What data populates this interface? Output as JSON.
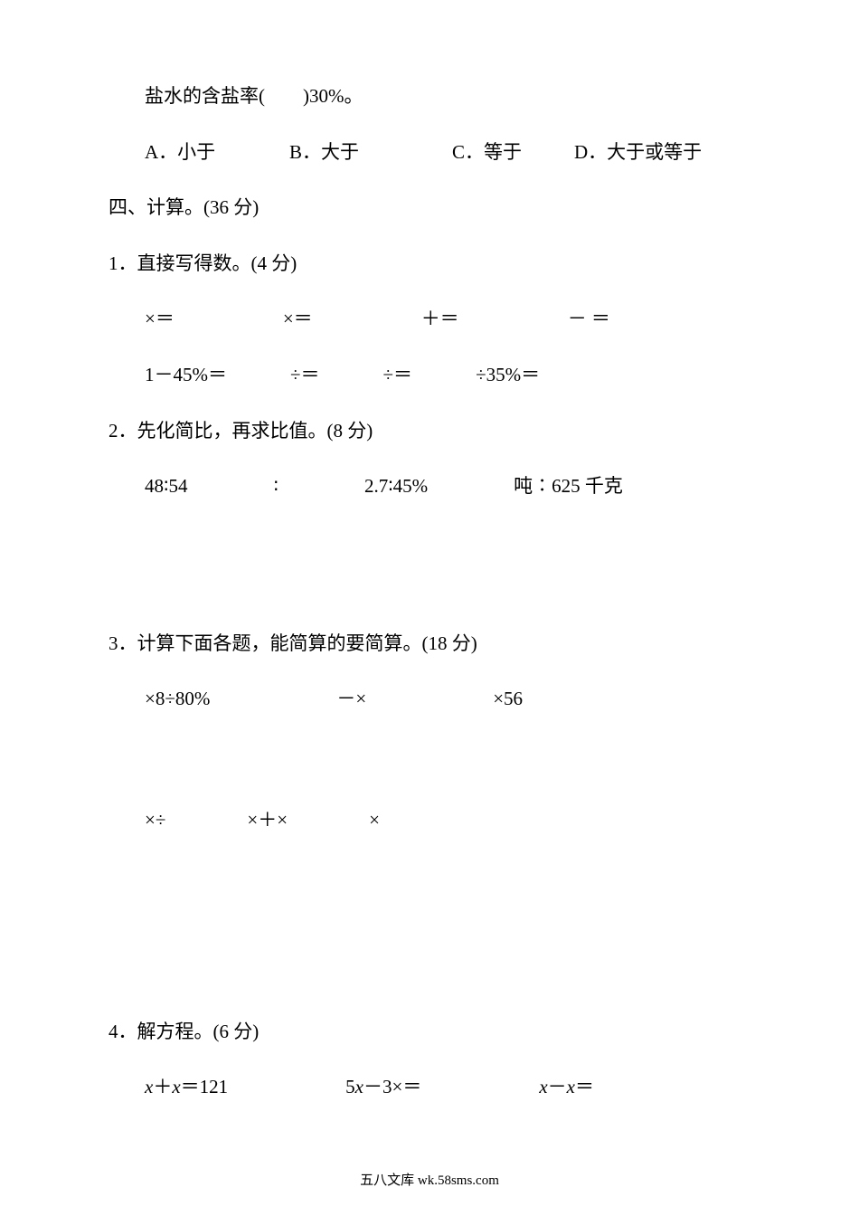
{
  "q_intro": {
    "text": "盐水的含盐率(　　)30%。"
  },
  "options": {
    "a": "A．小于",
    "b": "B．大于",
    "c": "C．等于",
    "d": "D．大于或等于"
  },
  "section4": {
    "title": "四、计算。(36 分)"
  },
  "s4_1": {
    "title": "1．直接写得数。(4 分)",
    "row1": {
      "a": "×＝",
      "b": "×＝",
      "c": "＋＝",
      "d": "－ ＝"
    },
    "row2": {
      "a": "1－45%＝",
      "b": "÷＝",
      "c": "÷＝",
      "d": "÷35%＝"
    }
  },
  "s4_2": {
    "title": "2．先化简比，再求比值。(8 分)",
    "items": {
      "a": "48∶54",
      "b": "∶",
      "c": "2.7∶45%",
      "d": "吨∶625 千克"
    }
  },
  "s4_3": {
    "title": "3．计算下面各题，能简算的要简算。(18 分)",
    "row1": {
      "a": "×8÷80%",
      "b": "－×",
      "c": "×56"
    },
    "row2": {
      "a": "×÷",
      "b": "×＋×",
      "c": "×"
    }
  },
  "s4_4": {
    "title": "4．解方程。(6 分)",
    "items": {
      "a_pre": "x",
      "a_mid": "＋",
      "a_post": "x＝121",
      "b_pre": "5x",
      "b_mid": "－3×＝",
      "c_pre": "x",
      "c_mid": "－",
      "c_post": "x＝"
    }
  },
  "footer": {
    "text": "五八文库 wk.58sms.com"
  },
  "layout": {
    "opt_a_width": 160,
    "opt_b_width": 180,
    "opt_c_width": 135,
    "row1_gap": 120,
    "row2_gap": 70,
    "ratio_gap": 95,
    "calc_gap": 140,
    "eq_gap": 130
  }
}
